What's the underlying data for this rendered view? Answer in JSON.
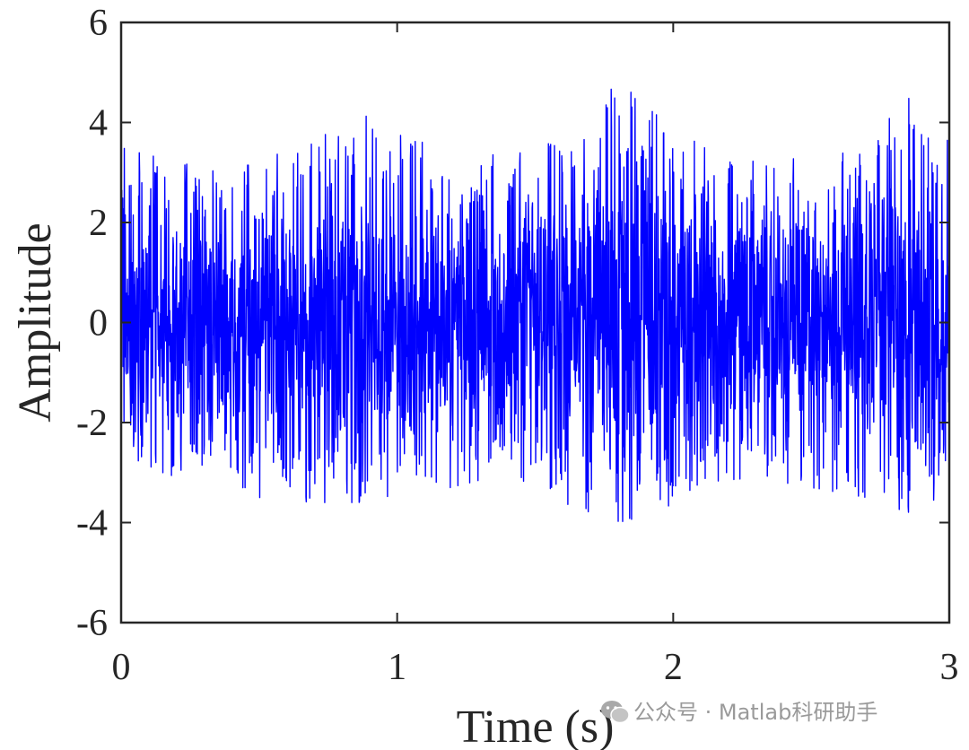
{
  "chart_data": {
    "type": "line",
    "title": "",
    "xlabel": "Time (s)",
    "ylabel": "Amplitude",
    "xlim": [
      0,
      3
    ],
    "ylim": [
      -6,
      6
    ],
    "xticks": [
      0,
      1,
      2,
      3
    ],
    "yticks": [
      -6,
      -4,
      -2,
      0,
      2,
      4,
      6
    ],
    "xtick_labels": [
      "0",
      "1",
      "2",
      "3"
    ],
    "ytick_labels": [
      "-6",
      "-4",
      "-2",
      "0",
      "2",
      "4",
      "6"
    ],
    "grid": false,
    "series": [
      {
        "color": "#0000ff",
        "x_start": 0,
        "x_end": 3,
        "envelope_x": [
          0,
          0.15,
          0.3,
          0.5,
          0.7,
          0.85,
          1.0,
          1.2,
          1.4,
          1.6,
          1.8,
          1.95,
          2.1,
          2.3,
          2.5,
          2.7,
          2.85,
          3.0
        ],
        "envelope_max": [
          3.5,
          3.4,
          3.0,
          3.2,
          3.7,
          4.2,
          3.9,
          3.5,
          3.3,
          3.7,
          4.8,
          4.3,
          3.5,
          3.4,
          3.3,
          3.6,
          4.5,
          3.6
        ],
        "envelope_min": [
          -2.6,
          -3.0,
          -3.3,
          -3.5,
          -3.6,
          -3.6,
          -3.6,
          -3.3,
          -3.0,
          -3.6,
          -4.0,
          -3.8,
          -3.2,
          -3.1,
          -3.3,
          -3.5,
          -3.8,
          -3.4
        ]
      }
    ]
  },
  "watermark": {
    "icon": "wechat-icon",
    "text": "公众号 · Matlab科研助手"
  }
}
